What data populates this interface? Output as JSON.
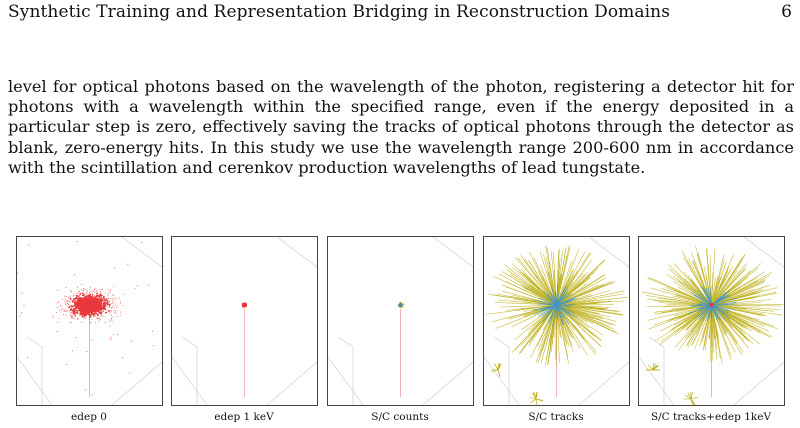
{
  "header": {
    "title": "Synthetic Training and Representation Bridging in Reconstruction Domains",
    "page_number": "6"
  },
  "body": {
    "paragraph": "level for optical photons based on the wavelength of the photon, registering a detector hit for photons with a wavelength within the specified range, even if the energy deposited in a particular step is zero, effectively saving the tracks of optical photons through the detector as blank, zero-energy hits. In this study we use the wavelength range 200-600 nm in accordance with the scintillation and cerenkov production wavelengths of lead tungstate."
  },
  "figure": {
    "panels": [
      {
        "caption": "edep 0",
        "style": "edep0"
      },
      {
        "caption": "edep 1 keV",
        "style": "edep1"
      },
      {
        "caption": "S/C counts",
        "style": "counts"
      },
      {
        "caption": "S/C tracks",
        "style": "tracks"
      },
      {
        "caption": "S/C tracks+edep 1keV",
        "style": "tracks_edep"
      }
    ],
    "colors": {
      "hits_red": "#e8383c",
      "track_yellow": "#b8a800",
      "track_blue": "#2e8fe0",
      "frame_grey": "#c8c8c8"
    }
  }
}
